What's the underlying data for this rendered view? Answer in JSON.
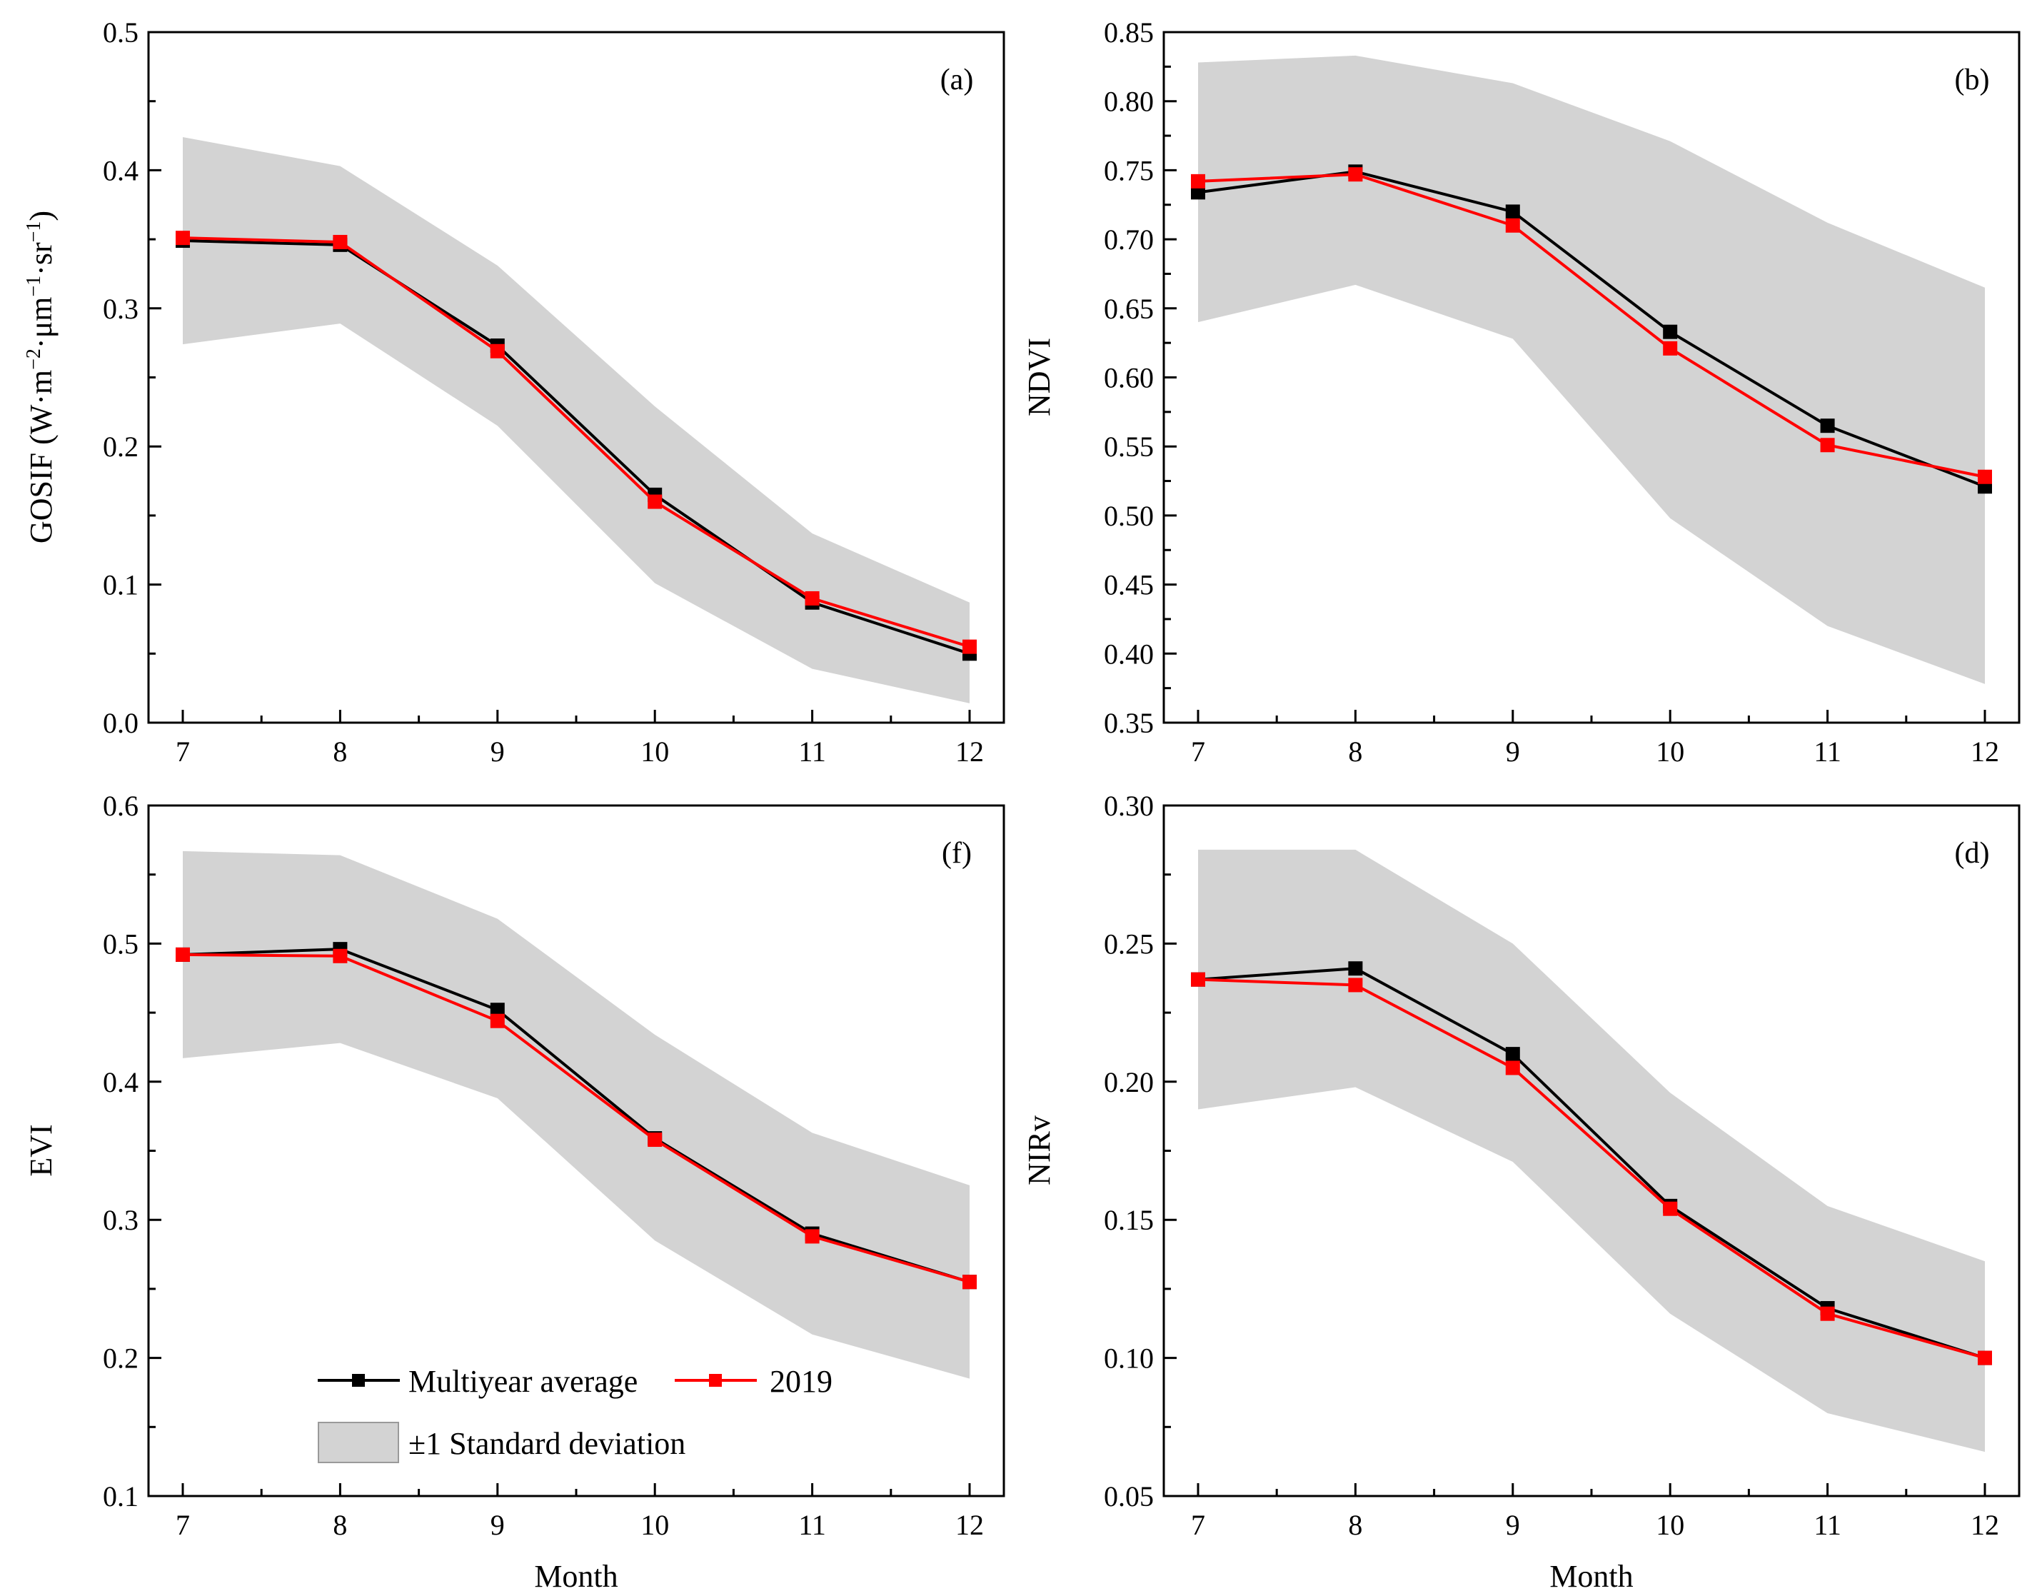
{
  "chart_data": [
    {
      "id": "a",
      "type": "line",
      "panel_label": "(a)",
      "ylabel": "GOSIF (W·m⁻²·μm⁻¹·sr⁻¹)",
      "ylabel_main": "GOSIF (W·m",
      "ylabel_parts": [
        "−2",
        "·μm",
        "−1",
        "·sr",
        "−1",
        ")"
      ],
      "xlabel": "",
      "ylim": [
        0.0,
        0.5
      ],
      "yticks": [
        "0.0",
        "0.1",
        "0.2",
        "0.3",
        "0.4",
        "0.5"
      ],
      "x": [
        7,
        8,
        9,
        10,
        11,
        12
      ],
      "xtick_labels": [
        "7",
        "8",
        "9",
        "10",
        "11",
        "12"
      ],
      "std_upper": [
        0.424,
        0.403,
        0.331,
        0.229,
        0.137,
        0.087
      ],
      "std_lower": [
        0.274,
        0.289,
        0.215,
        0.101,
        0.039,
        0.014
      ],
      "series": [
        {
          "name": "Multiyear average",
          "color": "#000000",
          "values": [
            0.349,
            0.346,
            0.273,
            0.165,
            0.087,
            0.05
          ]
        },
        {
          "name": "2019",
          "color": "#ff0000",
          "values": [
            0.351,
            0.348,
            0.269,
            0.16,
            0.09,
            0.055
          ]
        }
      ]
    },
    {
      "id": "b",
      "type": "line",
      "panel_label": "(b)",
      "ylabel": "NDVI",
      "xlabel": "",
      "ylim": [
        0.35,
        0.85
      ],
      "yticks": [
        "0.35",
        "0.40",
        "0.45",
        "0.50",
        "0.55",
        "0.60",
        "0.65",
        "0.70",
        "0.75",
        "0.80",
        "0.85"
      ],
      "x": [
        7,
        8,
        9,
        10,
        11,
        12
      ],
      "xtick_labels": [
        "7",
        "8",
        "9",
        "10",
        "11",
        "12"
      ],
      "std_upper": [
        0.828,
        0.833,
        0.813,
        0.771,
        0.712,
        0.665
      ],
      "std_lower": [
        0.64,
        0.667,
        0.628,
        0.498,
        0.42,
        0.378
      ],
      "series": [
        {
          "name": "Multiyear average",
          "color": "#000000",
          "values": [
            0.734,
            0.749,
            0.72,
            0.633,
            0.565,
            0.521
          ]
        },
        {
          "name": "2019",
          "color": "#ff0000",
          "values": [
            0.742,
            0.747,
            0.71,
            0.621,
            0.551,
            0.528
          ]
        }
      ]
    },
    {
      "id": "f",
      "type": "line",
      "panel_label": "(f)",
      "ylabel": "EVI",
      "xlabel": "Month",
      "ylim": [
        0.1,
        0.6
      ],
      "yticks": [
        "0.1",
        "0.2",
        "0.3",
        "0.4",
        "0.5",
        "0.6"
      ],
      "x": [
        7,
        8,
        9,
        10,
        11,
        12
      ],
      "xtick_labels": [
        "7",
        "8",
        "9",
        "10",
        "11",
        "12"
      ],
      "std_upper": [
        0.567,
        0.564,
        0.518,
        0.434,
        0.363,
        0.325
      ],
      "std_lower": [
        0.417,
        0.428,
        0.388,
        0.285,
        0.217,
        0.185
      ],
      "series": [
        {
          "name": "Multiyear average",
          "color": "#000000",
          "values": [
            0.492,
            0.496,
            0.452,
            0.359,
            0.29,
            0.255
          ]
        },
        {
          "name": "2019",
          "color": "#ff0000",
          "values": [
            0.492,
            0.491,
            0.444,
            0.358,
            0.288,
            0.255
          ]
        }
      ]
    },
    {
      "id": "d",
      "type": "line",
      "panel_label": "(d)",
      "ylabel": "NIRv",
      "xlabel": "Month",
      "ylim": [
        0.05,
        0.3
      ],
      "yticks": [
        "0.05",
        "0.10",
        "0.15",
        "0.20",
        "0.25",
        "0.30"
      ],
      "x": [
        7,
        8,
        9,
        10,
        11,
        12
      ],
      "xtick_labels": [
        "7",
        "8",
        "9",
        "10",
        "11",
        "12"
      ],
      "std_upper": [
        0.284,
        0.284,
        0.25,
        0.196,
        0.155,
        0.135
      ],
      "std_lower": [
        0.19,
        0.198,
        0.171,
        0.116,
        0.08,
        0.066
      ],
      "series": [
        {
          "name": "Multiyear average",
          "color": "#000000",
          "values": [
            0.237,
            0.241,
            0.21,
            0.155,
            0.118,
            0.1
          ]
        },
        {
          "name": "2019",
          "color": "#ff0000",
          "values": [
            0.237,
            0.235,
            0.205,
            0.154,
            0.116,
            0.1
          ]
        }
      ]
    }
  ],
  "legend": {
    "multiyear_label": "Multiyear average",
    "year_label": "2019",
    "std_label": "±1 Standard deviation"
  },
  "colors": {
    "band": "#d3d3d3",
    "multiyear": "#000000",
    "year": "#ff0000",
    "axis": "#000000"
  }
}
